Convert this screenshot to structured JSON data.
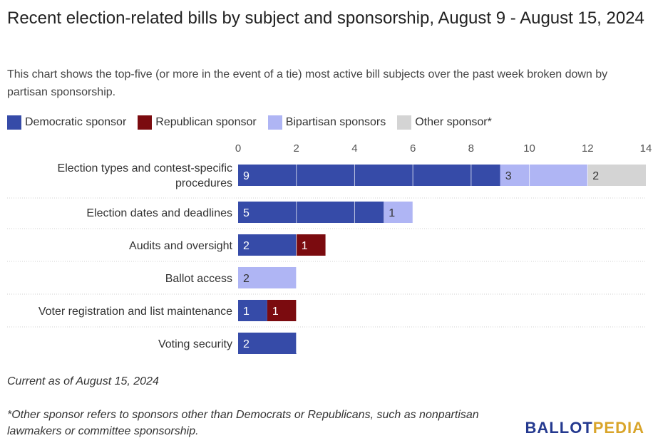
{
  "title": "Recent election-related bills by subject and sponsorship, August 9 - August 15, 2024",
  "subtitle": "This chart shows the top-five (or more in the event of a tie) most active bill subjects over the past week broken down by partisan sponsorship.",
  "legend": [
    {
      "label": "Democratic sponsor",
      "color": "#364ba8"
    },
    {
      "label": "Republican sponsor",
      "color": "#7b0b0f"
    },
    {
      "label": "Bipartisan sponsors",
      "color": "#afb5f4"
    },
    {
      "label": "Other sponsor*",
      "color": "#d4d4d4"
    }
  ],
  "note": "Current as of August 15, 2024",
  "footnote": "*Other sponsor refers to sponsors other than Democrats or Republicans, such as nonpartisan lawmakers or committee sponsorship.",
  "logo": {
    "part1": "BALLOT",
    "part2": "PEDIA"
  },
  "chart_data": {
    "type": "bar",
    "orientation": "horizontal",
    "stacked": true,
    "categories": [
      "Election types and contest-specific procedures",
      "Election dates and deadlines",
      "Audits and oversight",
      "Ballot access",
      "Voter registration and list maintenance",
      "Voting security"
    ],
    "series": [
      {
        "name": "Democratic sponsor",
        "color": "#364ba8",
        "label_color": "#ffffff",
        "values": [
          9,
          5,
          2,
          0,
          1,
          2
        ]
      },
      {
        "name": "Republican sponsor",
        "color": "#7b0b0f",
        "label_color": "#ffffff",
        "values": [
          0,
          0,
          1,
          0,
          1,
          0
        ]
      },
      {
        "name": "Bipartisan sponsors",
        "color": "#afb5f4",
        "label_color": "#333333",
        "values": [
          3,
          1,
          0,
          2,
          0,
          0
        ]
      },
      {
        "name": "Other sponsor*",
        "color": "#d4d4d4",
        "label_color": "#333333",
        "values": [
          2,
          0,
          0,
          0,
          0,
          0
        ]
      }
    ],
    "xlim": [
      0,
      14
    ],
    "xticks": [
      0,
      2,
      4,
      6,
      8,
      10,
      12,
      14
    ],
    "grid": true
  }
}
